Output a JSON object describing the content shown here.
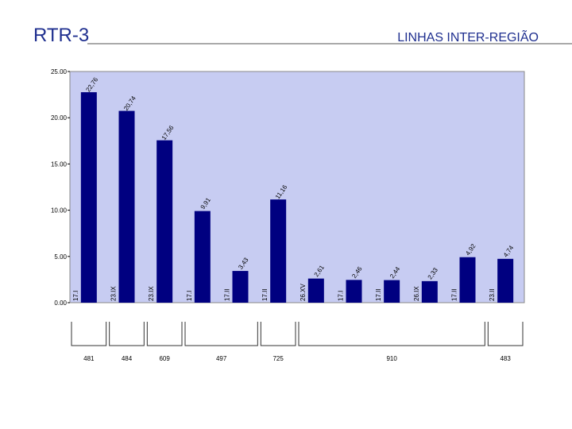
{
  "chart_data": {
    "type": "bar",
    "title": "RTR-3",
    "subtitle": "LINHAS INTER-REGIÃO",
    "categories": [
      "17.I",
      "23.IX",
      "23.IX",
      "17.I",
      "17.II",
      "17.II",
      "26.XV",
      "17.I",
      "17.II",
      "26.IX",
      "17.II",
      "23.II"
    ],
    "values": [
      22.76,
      20.74,
      17.56,
      9.91,
      3.43,
      11.16,
      2.61,
      2.46,
      2.44,
      2.33,
      4.92,
      4.74
    ],
    "value_labels": [
      "22,76",
      "20,74",
      "17,56",
      "9,91",
      "3,43",
      "11,16",
      "2,61",
      "2,46",
      "2,44",
      "2,33",
      "4,92",
      "4,74"
    ],
    "color": "#000080",
    "ylim": [
      0,
      25
    ],
    "yticks": [
      {
        "value": 0,
        "label": "0.00"
      },
      {
        "value": 5,
        "label": "5.00"
      },
      {
        "value": 10,
        "label": "10.00"
      },
      {
        "value": 15,
        "label": "15.00"
      },
      {
        "value": 20,
        "label": "20.00"
      },
      {
        "value": 25,
        "label": "25.00"
      }
    ],
    "group_labels": [
      "481",
      "484",
      "609",
      "497",
      "725",
      "910",
      "483"
    ]
  }
}
